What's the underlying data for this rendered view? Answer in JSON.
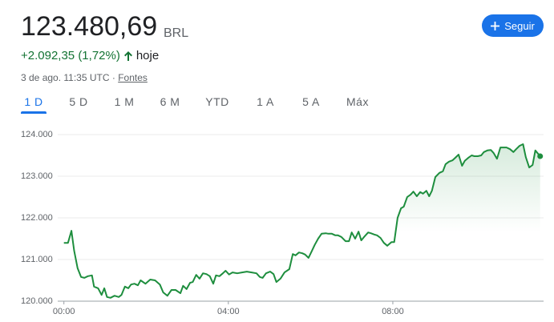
{
  "header": {
    "price": "123.480,69",
    "currency": "BRL",
    "change": "+2.092,35 (1,72%)",
    "period": "hoje",
    "timestamp": "3 de ago. 11:35 UTC ·",
    "sources": "Fontes",
    "follow": "Seguir",
    "tabs": [
      "1 D",
      "5 D",
      "1 M",
      "6 M",
      "YTD",
      "1 A",
      "5 A",
      "Máx"
    ]
  },
  "chart_data": {
    "type": "line",
    "x": [
      0,
      6,
      11,
      15,
      20,
      25,
      30,
      35,
      41,
      44,
      50,
      55,
      59,
      63,
      68,
      74,
      80,
      84,
      89,
      94,
      98,
      103,
      108,
      112,
      119,
      126,
      133,
      140,
      145,
      151,
      157,
      163,
      170,
      174,
      179,
      184,
      188,
      193,
      198,
      203,
      208,
      213,
      218,
      222,
      227,
      232,
      236,
      241,
      246,
      253,
      260,
      267,
      274,
      281,
      286,
      290,
      295,
      301,
      306,
      310,
      316,
      322,
      329,
      334,
      338,
      343,
      348,
      352,
      357,
      362,
      366,
      371,
      376,
      382,
      386,
      391,
      396,
      400,
      405,
      411,
      416,
      420,
      425,
      430,
      434,
      439,
      444,
      448,
      453,
      457,
      462,
      467,
      472,
      478,
      482,
      487,
      492,
      496,
      501,
      506,
      510,
      515,
      520,
      524,
      529,
      533,
      537,
      542,
      548,
      553,
      557,
      562,
      567,
      571,
      576,
      581,
      585,
      590,
      595,
      599,
      604,
      609,
      613,
      618,
      623,
      627,
      632,
      637,
      642,
      646,
      651,
      656,
      660,
      665,
      670,
      674,
      679,
      684,
      688,
      695
    ],
    "series": [
      {
        "color": "#1e8e3e",
        "values": [
          121400,
          121400,
          121690,
          121210,
          120790,
          120580,
          120560,
          120600,
          120620,
          120350,
          120310,
          120150,
          120310,
          120100,
          120080,
          120130,
          120100,
          120150,
          120350,
          120310,
          120400,
          120420,
          120380,
          120500,
          120420,
          120520,
          120500,
          120400,
          120210,
          120130,
          120270,
          120270,
          120190,
          120370,
          120290,
          120440,
          120460,
          120630,
          120540,
          120670,
          120650,
          120600,
          120420,
          120620,
          120600,
          120670,
          120730,
          120640,
          120690,
          120670,
          120690,
          120710,
          120690,
          120670,
          120580,
          120560,
          120670,
          120710,
          120650,
          120460,
          120540,
          120690,
          120770,
          121130,
          121100,
          121170,
          121150,
          121120,
          121040,
          121210,
          121350,
          121500,
          121620,
          121630,
          121620,
          121620,
          121580,
          121580,
          121540,
          121440,
          121440,
          121650,
          121500,
          121670,
          121460,
          121560,
          121650,
          121630,
          121600,
          121580,
          121520,
          121400,
          121330,
          121420,
          121420,
          122000,
          122230,
          122270,
          122500,
          122560,
          122630,
          122520,
          122620,
          122580,
          122650,
          122520,
          122650,
          122980,
          123080,
          123120,
          123290,
          123350,
          123380,
          123440,
          123520,
          123250,
          123370,
          123440,
          123500,
          123480,
          123480,
          123500,
          123580,
          123620,
          123630,
          123560,
          123420,
          123690,
          123690,
          123690,
          123650,
          123580,
          123650,
          123730,
          123770,
          123460,
          123210,
          123270,
          123620,
          123480
        ]
      }
    ],
    "xlim": [
      -9,
      700
    ],
    "xticks": [
      {
        "value": 0,
        "label": "00:00"
      },
      {
        "value": 240,
        "label": "04:00"
      },
      {
        "value": 480,
        "label": "08:00"
      }
    ],
    "ylim": [
      120000,
      124250
    ],
    "yticks": [
      {
        "value": 120000,
        "label": "120.000"
      },
      {
        "value": 121000,
        "label": "121.000"
      },
      {
        "value": 122000,
        "label": "122.000"
      },
      {
        "value": 123000,
        "label": "123.000"
      },
      {
        "value": 124000,
        "label": "124.000"
      }
    ],
    "grid": true
  }
}
